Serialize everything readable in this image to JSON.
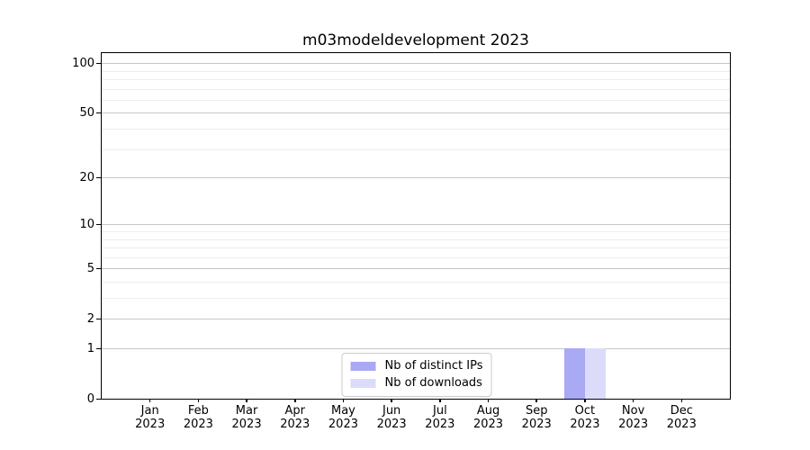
{
  "chart_data": {
    "type": "bar",
    "title": "m03modeldevelopment 2023",
    "x_categories": [
      "Jan",
      "Feb",
      "Mar",
      "Apr",
      "May",
      "Jun",
      "Jul",
      "Aug",
      "Sep",
      "Oct",
      "Nov",
      "Dec"
    ],
    "x_year_label": "2023",
    "series": [
      {
        "name": "Nb of distinct IPs",
        "color": "#a9a9f4",
        "values": [
          0,
          0,
          0,
          0,
          0,
          0,
          0,
          0,
          0,
          1,
          0,
          0
        ]
      },
      {
        "name": "Nb of downloads",
        "color": "#dcdcfa",
        "values": [
          0,
          0,
          0,
          0,
          0,
          0,
          0,
          0,
          0,
          1,
          0,
          0
        ]
      }
    ],
    "yscale": "log1p",
    "ylim": [
      0,
      115
    ],
    "y_major_ticks": [
      0,
      1,
      2,
      5,
      10,
      20,
      50,
      100
    ],
    "y_tick_labels": [
      "0",
      "1",
      "2",
      "5",
      "10",
      "20",
      "50",
      "100"
    ],
    "y_minor_ticks": [
      3,
      4,
      6,
      7,
      8,
      9,
      30,
      40,
      60,
      70,
      80,
      90
    ],
    "grid": true,
    "legend_position": "lower center inside",
    "colors": {
      "axis": "#000000",
      "grid_major": "#c6c6c6",
      "grid_minor": "#ececec",
      "background": "#ffffff"
    }
  }
}
